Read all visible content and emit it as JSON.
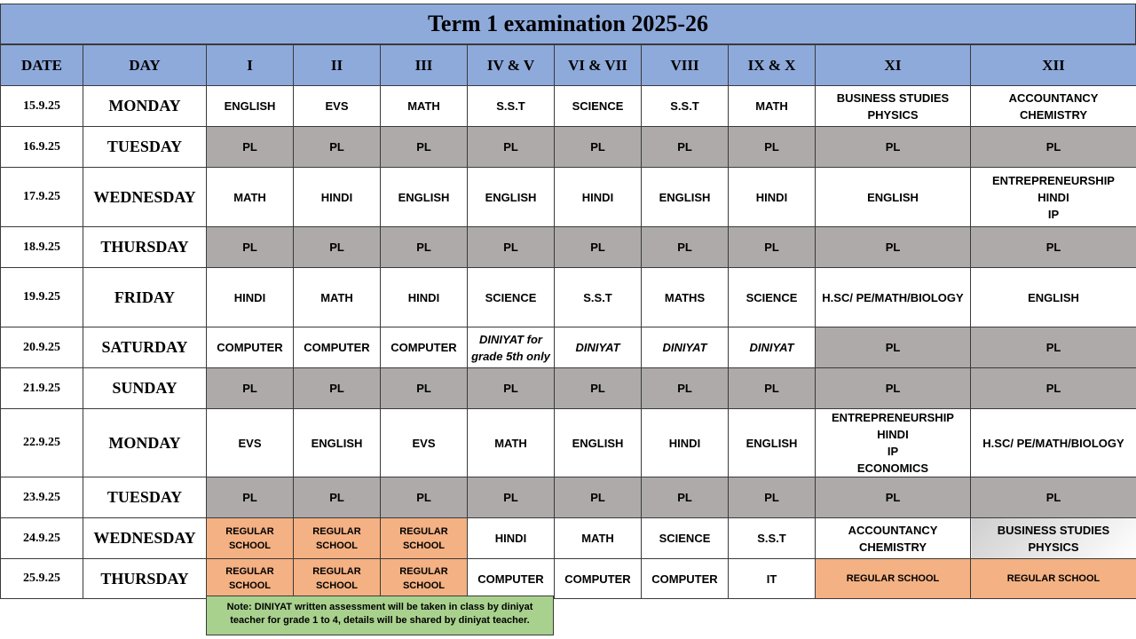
{
  "title": "Term 1 examination 2025-26",
  "headers": [
    "DATE",
    "DAY",
    "I",
    "II",
    "III",
    "IV & V",
    "VI & VII",
    "VIII",
    "IX & X",
    "XI",
    "XII"
  ],
  "rows": [
    {
      "date": "15.9.25",
      "day": "MONDAY",
      "cells": [
        {
          "lines": [
            "ENGLISH"
          ]
        },
        {
          "lines": [
            "EVS"
          ]
        },
        {
          "lines": [
            "MATH"
          ]
        },
        {
          "lines": [
            "S.S.T"
          ]
        },
        {
          "lines": [
            "SCIENCE"
          ]
        },
        {
          "lines": [
            "S.S.T"
          ]
        },
        {
          "lines": [
            "MATH"
          ]
        },
        {
          "lines": [
            "BUSINESS STUDIES",
            "PHYSICS"
          ]
        },
        {
          "lines": [
            "ACCOUNTANCY",
            "CHEMISTRY"
          ]
        }
      ]
    },
    {
      "date": "16.9.25",
      "day": "TUESDAY",
      "cells": [
        {
          "lines": [
            "PL"
          ],
          "style": "pl"
        },
        {
          "lines": [
            "PL"
          ],
          "style": "pl"
        },
        {
          "lines": [
            "PL"
          ],
          "style": "pl"
        },
        {
          "lines": [
            "PL"
          ],
          "style": "pl"
        },
        {
          "lines": [
            "PL"
          ],
          "style": "pl"
        },
        {
          "lines": [
            "PL"
          ],
          "style": "pl"
        },
        {
          "lines": [
            "PL"
          ],
          "style": "pl"
        },
        {
          "lines": [
            "PL"
          ],
          "style": "pl"
        },
        {
          "lines": [
            "PL"
          ],
          "style": "pl"
        }
      ]
    },
    {
      "date": "17.9.25",
      "day": "WEDNESDAY",
      "cells": [
        {
          "lines": [
            "MATH"
          ]
        },
        {
          "lines": [
            "HINDI"
          ]
        },
        {
          "lines": [
            "ENGLISH"
          ]
        },
        {
          "lines": [
            "ENGLISH"
          ]
        },
        {
          "lines": [
            "HINDI"
          ]
        },
        {
          "lines": [
            "ENGLISH"
          ]
        },
        {
          "lines": [
            "HINDI"
          ]
        },
        {
          "lines": [
            "ENGLISH"
          ]
        },
        {
          "lines": [
            "ENTREPRENEURSHIP",
            "HINDI",
            "IP"
          ]
        }
      ]
    },
    {
      "date": "18.9.25",
      "day": "THURSDAY",
      "cells": [
        {
          "lines": [
            "PL"
          ],
          "style": "pl"
        },
        {
          "lines": [
            "PL"
          ],
          "style": "pl"
        },
        {
          "lines": [
            "PL"
          ],
          "style": "pl"
        },
        {
          "lines": [
            "PL"
          ],
          "style": "pl"
        },
        {
          "lines": [
            "PL"
          ],
          "style": "pl"
        },
        {
          "lines": [
            "PL"
          ],
          "style": "pl"
        },
        {
          "lines": [
            "PL"
          ],
          "style": "pl"
        },
        {
          "lines": [
            "PL"
          ],
          "style": "pl"
        },
        {
          "lines": [
            "PL"
          ],
          "style": "pl"
        }
      ]
    },
    {
      "date": "19.9.25",
      "day": "FRIDAY",
      "cells": [
        {
          "lines": [
            "HINDI"
          ]
        },
        {
          "lines": [
            "MATH"
          ]
        },
        {
          "lines": [
            "HINDI"
          ]
        },
        {
          "lines": [
            "SCIENCE"
          ]
        },
        {
          "lines": [
            "S.S.T"
          ]
        },
        {
          "lines": [
            "MATHS"
          ]
        },
        {
          "lines": [
            "SCIENCE"
          ]
        },
        {
          "lines": [
            "H.SC/ PE/MATH/BIOLOGY"
          ]
        },
        {
          "lines": [
            "ENGLISH"
          ]
        }
      ]
    },
    {
      "date": "20.9.25",
      "day": "SATURDAY",
      "cells": [
        {
          "lines": [
            "COMPUTER"
          ]
        },
        {
          "lines": [
            "COMPUTER"
          ]
        },
        {
          "lines": [
            "COMPUTER"
          ]
        },
        {
          "lines": [
            "DINIYAT for",
            "grade 5th only"
          ],
          "style": "ital"
        },
        {
          "lines": [
            "DINIYAT"
          ],
          "style": "ital"
        },
        {
          "lines": [
            "DINIYAT"
          ],
          "style": "ital"
        },
        {
          "lines": [
            "DINIYAT"
          ],
          "style": "ital"
        },
        {
          "lines": [
            "PL"
          ],
          "style": "pl"
        },
        {
          "lines": [
            "PL"
          ],
          "style": "pl"
        }
      ]
    },
    {
      "date": "21.9.25",
      "day": "SUNDAY",
      "cells": [
        {
          "lines": [
            "PL"
          ],
          "style": "pl"
        },
        {
          "lines": [
            "PL"
          ],
          "style": "pl"
        },
        {
          "lines": [
            "PL"
          ],
          "style": "pl"
        },
        {
          "lines": [
            "PL"
          ],
          "style": "pl"
        },
        {
          "lines": [
            "PL"
          ],
          "style": "pl"
        },
        {
          "lines": [
            "PL"
          ],
          "style": "pl"
        },
        {
          "lines": [
            "PL"
          ],
          "style": "pl"
        },
        {
          "lines": [
            "PL"
          ],
          "style": "pl"
        },
        {
          "lines": [
            "PL"
          ],
          "style": "pl"
        }
      ]
    },
    {
      "date": "22.9.25",
      "day": "MONDAY",
      "cells": [
        {
          "lines": [
            "EVS"
          ]
        },
        {
          "lines": [
            "ENGLISH"
          ]
        },
        {
          "lines": [
            "EVS"
          ]
        },
        {
          "lines": [
            "MATH"
          ]
        },
        {
          "lines": [
            "ENGLISH"
          ]
        },
        {
          "lines": [
            "HINDI"
          ]
        },
        {
          "lines": [
            "ENGLISH"
          ]
        },
        {
          "lines": [
            "ENTREPRENEURSHIP",
            "HINDI",
            "IP",
            "ECONOMICS"
          ]
        },
        {
          "lines": [
            "H.SC/ PE/MATH/BIOLOGY"
          ]
        }
      ]
    },
    {
      "date": "23.9.25",
      "day": "TUESDAY",
      "cells": [
        {
          "lines": [
            "PL"
          ],
          "style": "pl"
        },
        {
          "lines": [
            "PL"
          ],
          "style": "pl"
        },
        {
          "lines": [
            "PL"
          ],
          "style": "pl"
        },
        {
          "lines": [
            "PL"
          ],
          "style": "pl"
        },
        {
          "lines": [
            "PL"
          ],
          "style": "pl"
        },
        {
          "lines": [
            "PL"
          ],
          "style": "pl"
        },
        {
          "lines": [
            "PL"
          ],
          "style": "pl"
        },
        {
          "lines": [
            "PL"
          ],
          "style": "pl"
        },
        {
          "lines": [
            "PL"
          ],
          "style": "pl"
        }
      ]
    },
    {
      "date": "24.9.25",
      "day": "WEDNESDAY",
      "cells": [
        {
          "lines": [
            "REGULAR",
            "SCHOOL"
          ],
          "style": "reg"
        },
        {
          "lines": [
            "REGULAR",
            "SCHOOL"
          ],
          "style": "reg"
        },
        {
          "lines": [
            "REGULAR",
            "SCHOOL"
          ],
          "style": "reg"
        },
        {
          "lines": [
            "HINDI"
          ]
        },
        {
          "lines": [
            "MATH"
          ]
        },
        {
          "lines": [
            "SCIENCE"
          ]
        },
        {
          "lines": [
            "S.S.T"
          ]
        },
        {
          "lines": [
            "ACCOUNTANCY",
            "CHEMISTRY"
          ]
        },
        {
          "lines": [
            "BUSINESS STUDIES",
            "PHYSICS"
          ],
          "style": "grad"
        }
      ]
    },
    {
      "date": "25.9.25",
      "day": "THURSDAY",
      "cells": [
        {
          "lines": [
            "REGULAR",
            "SCHOOL"
          ],
          "style": "reg"
        },
        {
          "lines": [
            "REGULAR",
            "SCHOOL"
          ],
          "style": "reg"
        },
        {
          "lines": [
            "REGULAR",
            "SCHOOL"
          ],
          "style": "reg"
        },
        {
          "lines": [
            "COMPUTER"
          ]
        },
        {
          "lines": [
            "COMPUTER"
          ]
        },
        {
          "lines": [
            "COMPUTER"
          ]
        },
        {
          "lines": [
            "IT"
          ]
        },
        {
          "lines": [
            "REGULAR SCHOOL"
          ],
          "style": "reg"
        },
        {
          "lines": [
            "REGULAR SCHOOL"
          ],
          "style": "reg"
        }
      ]
    }
  ],
  "note": "Note: DINIYAT written assessment will be taken in class by diniyat teacher for grade 1 to 4, details will be shared by diniyat teacher.",
  "colors": {
    "header": "#8eaadb",
    "pl": "#aeaaaa",
    "regular_school": "#f4b183",
    "note": "#a9d18e"
  }
}
